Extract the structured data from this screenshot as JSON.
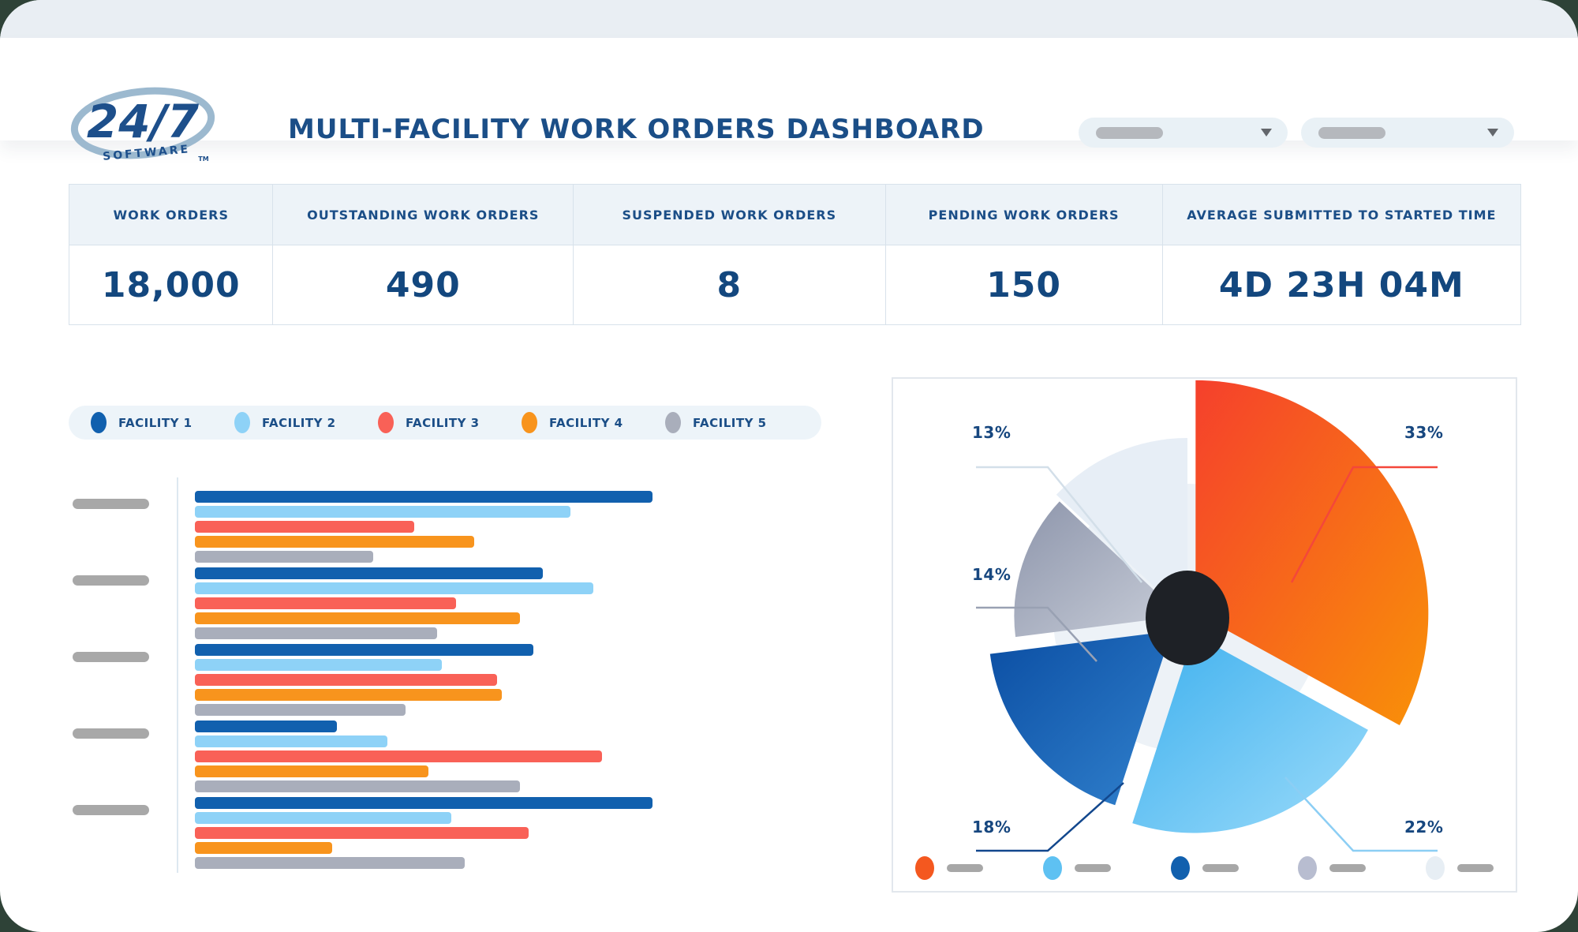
{
  "page": {
    "backdrop_color": "#2e4237",
    "topbar_color": "#e9eef3",
    "placeholder_color": "#a8a8a8"
  },
  "header": {
    "logo": {
      "main": "24/7",
      "sub": "SOFTWARE",
      "tm": "TM"
    },
    "title": "MULTI-FACILITY WORK ORDERS DASHBOARD",
    "filters": [
      {
        "name": "filter-1"
      },
      {
        "name": "filter-2"
      }
    ]
  },
  "stats": [
    {
      "label": "WORK ORDERS",
      "value": "18,000"
    },
    {
      "label": "OUTSTANDING WORK ORDERS",
      "value": "490"
    },
    {
      "label": "SUSPENDED WORK ORDERS",
      "value": "8"
    },
    {
      "label": "PENDING WORK ORDERS",
      "value": "150"
    },
    {
      "label": "AVERAGE SUBMITTED TO STARTED TIME",
      "value": "4D 23H 04M"
    }
  ],
  "chart_data": [
    {
      "type": "bar",
      "orientation": "horizontal",
      "categories": [
        "",
        "",
        "",
        "",
        ""
      ],
      "category_labels_redacted": true,
      "value_units": "relative, longest bar = 100 (axis unlabeled)",
      "series": [
        {
          "name": "FACILITY 1",
          "color": "#1160ae",
          "values": [
            100,
            76,
            74,
            31,
            100
          ]
        },
        {
          "name": "FACILITY 2",
          "color": "#8ed2f7",
          "values": [
            82,
            87,
            54,
            42,
            56
          ]
        },
        {
          "name": "FACILITY 3",
          "color": "#f96157",
          "values": [
            48,
            57,
            66,
            89,
            73
          ]
        },
        {
          "name": "FACILITY 4",
          "color": "#f8941d",
          "values": [
            61,
            71,
            67,
            51,
            30
          ]
        },
        {
          "name": "FACILITY 5",
          "color": "#a9aebb",
          "values": [
            39,
            53,
            46,
            71,
            59
          ]
        }
      ],
      "legend_position": "top",
      "grid": false
    },
    {
      "type": "pie",
      "style": "rose",
      "slices": [
        {
          "label": "33%",
          "value": 33,
          "color_start": "#f5402c",
          "color_end": "#f99108",
          "line_color": "#f4473a"
        },
        {
          "label": "22%",
          "value": 22,
          "color_start": "#3eb0ee",
          "color_end": "#9bdbfa",
          "line_color": "#8ccef4"
        },
        {
          "label": "18%",
          "value": 18,
          "color_start": "#0b4ea3",
          "color_end": "#3181cd",
          "line_color": "#12478d"
        },
        {
          "label": "14%",
          "value": 14,
          "color_start": "#8d95ab",
          "color_end": "#c9ced9",
          "line_color": "#99a1b3"
        },
        {
          "label": "13%",
          "value": 13,
          "color_start": "#e7eef6",
          "color_end": "#e7eef6",
          "line_color": "#d3dfe9"
        }
      ],
      "center_dot_color": "#1e2126",
      "background_circle_color": "#edf2f7",
      "legend_position": "bottom",
      "legend_labels_redacted": true,
      "legend_dot_colors": [
        "#f4581f",
        "#5ec1f2",
        "#1160ae",
        "#b8bdd0",
        "#e7eef4"
      ],
      "legend_dash_color": "#a7a7a7"
    }
  ]
}
